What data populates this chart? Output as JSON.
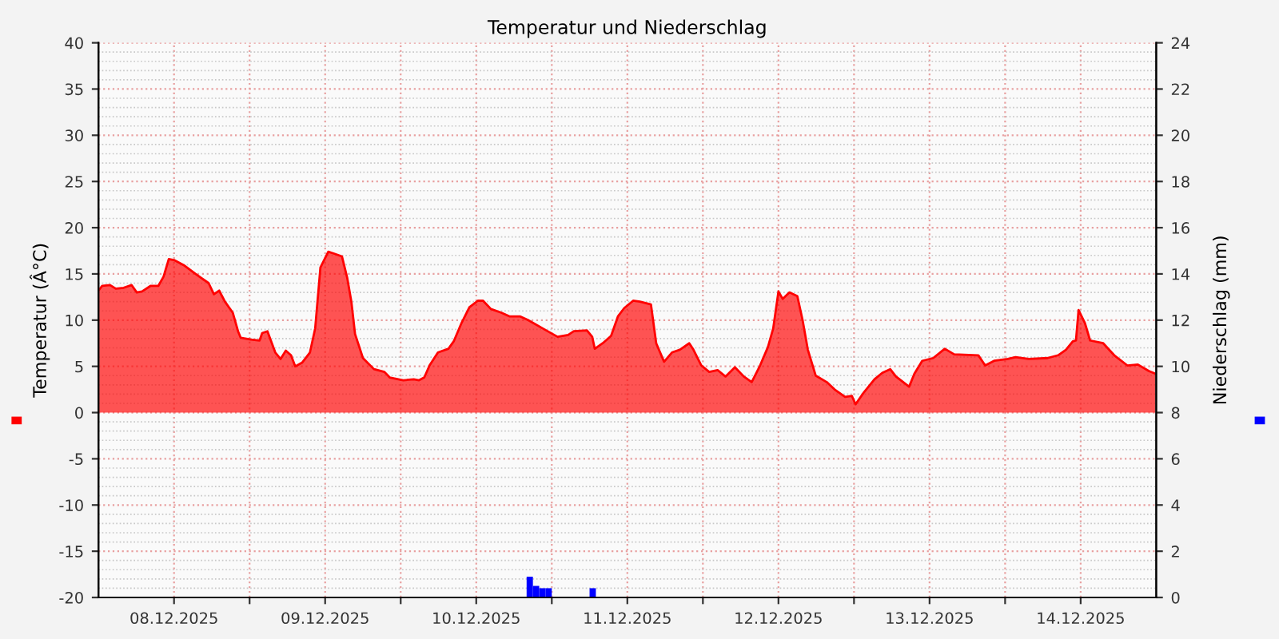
{
  "chart_data": {
    "type": "area",
    "title": "Temperatur und Niederschlag",
    "ylabel": "Temperatur (Â°C)",
    "y2label": "Niederschlag (mm)",
    "xlim": [
      "2025-12-08T00:00",
      "2025-12-15T00:00"
    ],
    "xticks": [
      {
        "value": "2025-12-08T12:00",
        "label": "08.12.2025"
      },
      {
        "value": "2025-12-09T00:00",
        "label": null
      },
      {
        "value": "2025-12-09T12:00",
        "label": "09.12.2025"
      },
      {
        "value": "2025-12-10T00:00",
        "label": null
      },
      {
        "value": "2025-12-10T12:00",
        "label": "10.12.2025"
      },
      {
        "value": "2025-12-11T00:00",
        "label": null
      },
      {
        "value": "2025-12-11T12:00",
        "label": "11.12.2025"
      },
      {
        "value": "2025-12-12T00:00",
        "label": null
      },
      {
        "value": "2025-12-12T12:00",
        "label": "12.12.2025"
      },
      {
        "value": "2025-12-13T00:00",
        "label": null
      },
      {
        "value": "2025-12-13T12:00",
        "label": "13.12.2025"
      },
      {
        "value": "2025-12-14T00:00",
        "label": null
      },
      {
        "value": "2025-12-14T12:00",
        "label": "14.12.2025"
      }
    ],
    "ylim": [
      -20,
      40
    ],
    "yticks": [
      -20,
      -15,
      -10,
      -5,
      0,
      5,
      10,
      15,
      20,
      25,
      30,
      35,
      40
    ],
    "y2lim": [
      0,
      24
    ],
    "y2ticks": [
      0,
      2,
      4,
      6,
      8,
      10,
      12,
      14,
      16,
      18,
      20,
      22,
      24
    ],
    "grid": true,
    "series": [
      {
        "color": "#ff0000",
        "x": [
          "2025-12-08T00:00",
          "2025-12-08T00:35",
          "2025-12-08T01:50",
          "2025-12-08T02:45",
          "2025-12-08T04:00",
          "2025-12-08T05:15",
          "2025-12-08T06:05",
          "2025-12-08T06:55",
          "2025-12-08T08:15",
          "2025-12-08T09:30",
          "2025-12-08T10:20",
          "2025-12-08T11:10",
          "2025-12-08T12:00",
          "2025-12-08T13:40",
          "2025-12-08T15:25",
          "2025-12-08T17:30",
          "2025-12-08T18:20",
          "2025-12-08T19:10",
          "2025-12-08T20:05",
          "2025-12-08T21:20",
          "2025-12-08T22:10",
          "2025-12-08T22:35",
          "2025-12-09T00:15",
          "2025-12-09T01:35",
          "2025-12-09T02:00",
          "2025-12-09T02:50",
          "2025-12-09T04:05",
          "2025-12-09T04:55",
          "2025-12-09T05:45",
          "2025-12-09T06:35",
          "2025-12-09T07:15",
          "2025-12-09T08:20",
          "2025-12-09T09:35",
          "2025-12-09T10:25",
          "2025-12-09T11:15",
          "2025-12-09T12:30",
          "2025-12-09T13:25",
          "2025-12-09T14:40",
          "2025-12-09T15:30",
          "2025-12-09T16:10",
          "2025-12-09T16:45",
          "2025-12-09T18:00",
          "2025-12-09T19:45",
          "2025-12-09T21:25",
          "2025-12-09T22:15",
          "2025-12-10T00:25",
          "2025-12-10T02:05",
          "2025-12-10T02:55",
          "2025-12-10T03:45",
          "2025-12-10T04:35",
          "2025-12-10T05:55",
          "2025-12-10T07:35",
          "2025-12-10T08:25",
          "2025-12-10T09:40",
          "2025-12-10T10:55",
          "2025-12-10T12:15",
          "2025-12-10T13:05",
          "2025-12-10T14:20",
          "2025-12-10T16:00",
          "2025-12-10T17:20",
          "2025-12-10T19:00",
          "2025-12-10T20:15",
          "2025-12-10T22:50",
          "2025-12-11T00:55",
          "2025-12-11T02:35",
          "2025-12-11T03:30",
          "2025-12-11T05:35",
          "2025-12-11T06:25",
          "2025-12-11T06:50",
          "2025-12-11T08:05",
          "2025-12-11T09:25",
          "2025-12-11T10:30",
          "2025-12-11T11:30",
          "2025-12-11T12:55",
          "2025-12-11T14:00",
          "2025-12-11T15:45",
          "2025-12-11T16:35",
          "2025-12-11T17:50",
          "2025-12-11T19:05",
          "2025-12-11T20:20",
          "2025-12-11T21:50",
          "2025-12-11T22:30",
          "2025-12-11T23:45",
          "2025-12-12T01:00",
          "2025-12-12T02:20",
          "2025-12-12T03:35",
          "2025-12-12T05:05",
          "2025-12-12T06:30",
          "2025-12-12T07:45",
          "2025-12-12T09:05",
          "2025-12-12T10:20",
          "2025-12-12T11:10",
          "2025-12-12T12:00",
          "2025-12-12T12:40",
          "2025-12-12T13:45",
          "2025-12-12T15:00",
          "2025-12-12T15:50",
          "2025-12-12T16:40",
          "2025-12-12T17:55",
          "2025-12-12T19:40",
          "2025-12-12T20:55",
          "2025-12-12T22:35",
          "2025-12-12T23:40",
          "2025-12-13T00:15",
          "2025-12-13T01:35",
          "2025-12-13T03:15",
          "2025-12-13T04:30",
          "2025-12-13T05:45",
          "2025-12-13T06:40",
          "2025-12-13T08:45",
          "2025-12-13T09:35",
          "2025-12-13T10:50",
          "2025-12-13T12:35",
          "2025-12-13T14:25",
          "2025-12-13T15:55",
          "2025-12-13T19:45",
          "2025-12-13T20:50",
          "2025-12-13T22:15",
          "2025-12-14T00:25",
          "2025-12-14T01:40",
          "2025-12-14T03:45",
          "2025-12-14T06:45",
          "2025-12-14T08:25",
          "2025-12-14T09:40",
          "2025-12-14T10:45",
          "2025-12-14T11:15",
          "2025-12-14T11:40",
          "2025-12-14T12:40",
          "2025-12-14T13:30",
          "2025-12-14T15:35",
          "2025-12-14T17:20",
          "2025-12-14T19:25",
          "2025-12-14T21:05",
          "2025-12-14T22:50",
          "2025-12-14T23:55"
        ],
        "values": [
          13.2,
          13.7,
          13.8,
          13.4,
          13.5,
          13.8,
          13.0,
          13.1,
          13.7,
          13.7,
          14.7,
          16.6,
          16.5,
          15.9,
          15.0,
          14.0,
          12.8,
          13.2,
          12.0,
          10.8,
          8.8,
          8.1,
          7.9,
          7.8,
          8.6,
          8.8,
          6.5,
          5.8,
          6.7,
          6.2,
          5.0,
          5.4,
          6.5,
          9.1,
          15.7,
          17.4,
          17.2,
          16.9,
          14.6,
          12.0,
          8.5,
          5.9,
          4.7,
          4.4,
          3.8,
          3.5,
          3.6,
          3.5,
          3.8,
          5.1,
          6.5,
          6.9,
          7.7,
          9.7,
          11.4,
          12.1,
          12.1,
          11.2,
          10.8,
          10.4,
          10.4,
          10.0,
          9.0,
          8.2,
          8.4,
          8.8,
          8.9,
          8.2,
          6.9,
          7.5,
          8.3,
          10.4,
          11.3,
          12.1,
          12.0,
          11.7,
          7.5,
          5.5,
          6.5,
          6.8,
          7.5,
          6.8,
          5.1,
          4.4,
          4.6,
          3.9,
          4.9,
          3.9,
          3.3,
          5.1,
          7.1,
          9.1,
          13.1,
          12.3,
          13.0,
          12.6,
          10.0,
          6.8,
          4.0,
          3.3,
          2.5,
          1.7,
          1.8,
          0.9,
          2.2,
          3.6,
          4.3,
          4.7,
          3.9,
          2.8,
          4.2,
          5.6,
          5.9,
          6.9,
          6.3,
          6.2,
          5.1,
          5.6,
          5.8,
          6.0,
          5.8,
          5.9,
          6.2,
          6.8,
          7.7,
          7.8,
          11.1,
          9.7,
          7.8,
          7.5,
          6.2,
          5.1,
          5.2,
          4.5,
          4.2
        ]
      },
      {
        "type": "bar",
        "axis": "y2",
        "color": "#0000ff",
        "x": [
          "2025-12-10T20:30",
          "2025-12-10T21:30",
          "2025-12-10T22:30",
          "2025-12-10T23:30",
          "2025-12-11T06:30"
        ],
        "values": [
          0.9,
          0.5,
          0.4,
          0.4,
          0.4
        ]
      }
    ]
  }
}
